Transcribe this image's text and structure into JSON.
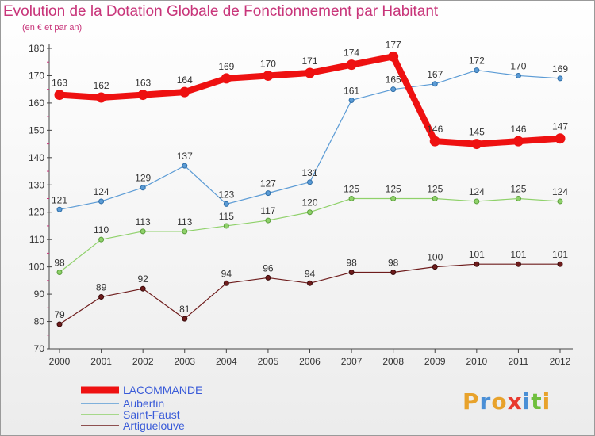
{
  "title": "Evolution de la Dotation Globale de Fonctionnement par Habitant",
  "subtitle": "(en € et par an)",
  "logo": {
    "letters": [
      "P",
      "r",
      "o",
      "x",
      "i",
      "t",
      "i"
    ],
    "colors": [
      "#e8a22b",
      "#4a8fd6",
      "#e8a22b",
      "#e83a2f",
      "#4a8fd6",
      "#6fbf3d",
      "#e8a22b"
    ]
  },
  "chart_data": {
    "type": "line",
    "x": [
      "2000",
      "2001",
      "2002",
      "2003",
      "2004",
      "2005",
      "2006",
      "2007",
      "2008",
      "2009",
      "2010",
      "2011",
      "2012"
    ],
    "ylim": [
      70,
      180
    ],
    "yticks": [
      70,
      80,
      90,
      100,
      110,
      120,
      130,
      140,
      150,
      160,
      170,
      180
    ],
    "grid": false,
    "legend_position": "bottom-left",
    "series": [
      {
        "name": "LACOMMANDE",
        "color": "#ee1111",
        "values": [
          163,
          162,
          163,
          164,
          169,
          170,
          171,
          174,
          177,
          146,
          145,
          146,
          147
        ]
      },
      {
        "name": "Aubertin",
        "color": "#5b9bd5",
        "values": [
          121,
          124,
          129,
          137,
          123,
          127,
          131,
          161,
          165,
          167,
          172,
          170,
          169
        ]
      },
      {
        "name": "Saint-Faust",
        "color": "#8fd16a",
        "values": [
          98,
          110,
          113,
          113,
          115,
          117,
          120,
          125,
          125,
          125,
          124,
          125,
          124
        ]
      },
      {
        "name": "Artiguelouve",
        "color": "#6e1c1c",
        "values": [
          79,
          89,
          92,
          81,
          94,
          96,
          94,
          98,
          98,
          100,
          101,
          101,
          101
        ]
      }
    ]
  }
}
